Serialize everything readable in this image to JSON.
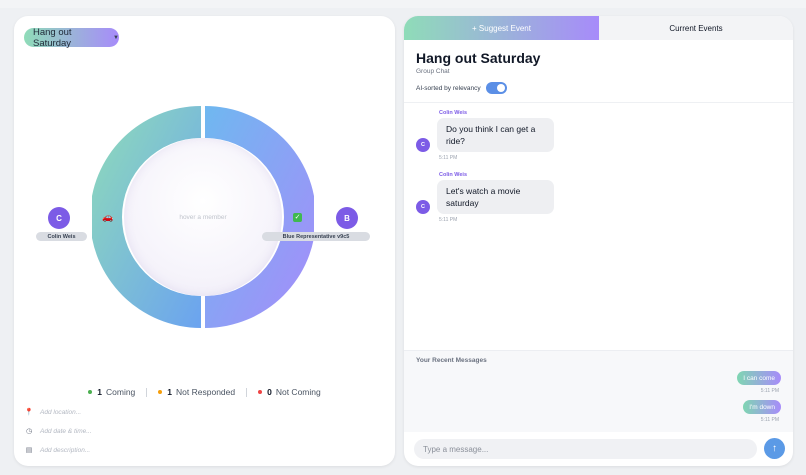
{
  "event_selector": {
    "label": "Hang out Saturday",
    "caret_icon": "chevron-down-icon"
  },
  "ring": {
    "center_hint": "hover a member",
    "colors": {
      "gradient_start": "#8fdcb8",
      "gradient_end": "#a78bfa",
      "avatar": "#7c5be6"
    },
    "members": [
      {
        "initial": "C",
        "name": "Colin Weis",
        "status_icon": "car-icon",
        "status_glyph": "🚗"
      },
      {
        "initial": "B",
        "name": "Blue Representative v9c5",
        "status_icon": "check-icon",
        "status_glyph": "✓"
      }
    ]
  },
  "summary": {
    "coming": {
      "count": "1",
      "label": "Coming",
      "color": "#4caf50"
    },
    "not_responded": {
      "count": "1",
      "label": "Not Responded",
      "color": "#f59e0b"
    },
    "not_coming": {
      "count": "0",
      "label": "Not Coming",
      "color": "#ef4444"
    }
  },
  "details": {
    "location": {
      "placeholder": "Add location...",
      "icon": "pin-icon"
    },
    "datetime": {
      "placeholder": "Add date & time...",
      "icon": "clock-icon"
    },
    "description": {
      "placeholder": "Add description...",
      "icon": "note-icon"
    }
  },
  "tabs": {
    "suggest": "+ Suggest Event",
    "current": "Current Events"
  },
  "chat": {
    "title": "Hang out Saturday",
    "subtitle": "Group Chat",
    "ai_sort_label": "AI-sorted by relevancy",
    "ai_sort_on": true,
    "messages": [
      {
        "sender": "Colin Weis",
        "initial": "C",
        "text_lines": [
          "Do you think I can get a",
          "ride?"
        ],
        "time": "5:11 PM"
      },
      {
        "sender": "Colin Weis",
        "initial": "C",
        "text_lines": [
          "Let's watch a movie",
          "saturday"
        ],
        "time": "5:11 PM"
      }
    ]
  },
  "recent": {
    "title": "Your Recent Messages",
    "items": [
      {
        "text": "I can come",
        "time": "5:11 PM"
      },
      {
        "text": "I'm down",
        "time": "5:11 PM"
      }
    ]
  },
  "composer": {
    "placeholder": "Type a message...",
    "send_icon": "arrow-up-icon"
  }
}
